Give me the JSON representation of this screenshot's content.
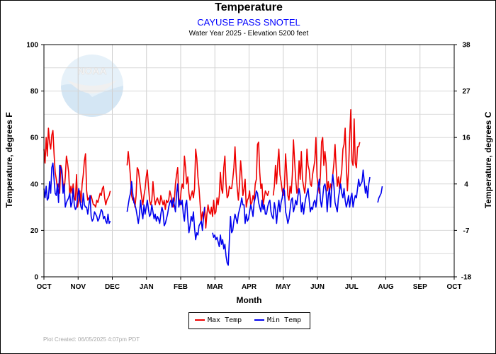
{
  "chart_data": {
    "type": "line",
    "title": "Temperature",
    "subtitle": "CAYUSE PASS SNOTEL",
    "subtitle2": "Water Year 2025 -  Elevation 5200 feet",
    "xlabel": "Month",
    "ylabel_left": "Temperature, degrees F",
    "ylabel_right": "Temperature, degrees C",
    "x_categories": [
      "OCT",
      "NOV",
      "DEC",
      "JAN",
      "FEB",
      "MAR",
      "APR",
      "MAY",
      "JUN",
      "JUL",
      "AUG",
      "SEP",
      "OCT"
    ],
    "y_left_ticks": [
      "0",
      "20",
      "40",
      "60",
      "80",
      "100"
    ],
    "y_right_ticks": [
      "-18",
      "-7",
      "4",
      "16",
      "27",
      "38"
    ],
    "ylim": [
      0,
      100
    ],
    "grid": true,
    "legend": "bottom-center",
    "footer": "Plot Created: 06/05/2025 4:07pm PDT",
    "watermark": "NOAA",
    "series": [
      {
        "name": "Max Temp",
        "color": "#ee0000",
        "start": "2024-10-01",
        "values": [
          55,
          49,
          60,
          52,
          64,
          58,
          55,
          61,
          63,
          53,
          45,
          42,
          38,
          40,
          36,
          48,
          46,
          40,
          37,
          43,
          52,
          49,
          45,
          35,
          39,
          36,
          40,
          34,
          33,
          44,
          30,
          33,
          37,
          32,
          40,
          44,
          50,
          53,
          37,
          33,
          34,
          33,
          35,
          33,
          31,
          31,
          30,
          33,
          32,
          34,
          36,
          35,
          38,
          39,
          34,
          31,
          33,
          34,
          35,
          37,
          null,
          null,
          null,
          null,
          null,
          null,
          null,
          null,
          null,
          null,
          null,
          null,
          null,
          null,
          48,
          54,
          49,
          43,
          35,
          33,
          34,
          30,
          35,
          47,
          46,
          42,
          38,
          34,
          31,
          35,
          38,
          43,
          46,
          39,
          33,
          31,
          33,
          41,
          35,
          31,
          33,
          34,
          32,
          31,
          35,
          33,
          31,
          33,
          29,
          33,
          32,
          33,
          37,
          35,
          32,
          30,
          33,
          40,
          44,
          47,
          34,
          31,
          37,
          40,
          38,
          52,
          47,
          40,
          43,
          36,
          33,
          35,
          37,
          34,
          38,
          55,
          51,
          43,
          38,
          31,
          24,
          28,
          25,
          30,
          21,
          27,
          31,
          28,
          27,
          30,
          26,
          33,
          27,
          28,
          34,
          31,
          35,
          45,
          38,
          36,
          47,
          52,
          40,
          34,
          35,
          39,
          38,
          38,
          42,
          47,
          56,
          45,
          38,
          33,
          40,
          50,
          44,
          35,
          38,
          42,
          30,
          33,
          34,
          37,
          31,
          32,
          35,
          33,
          40,
          42,
          57,
          58,
          45,
          38,
          40,
          31,
          34,
          37,
          36,
          35,
          37,
          null,
          null,
          null,
          35,
          39,
          48,
          40,
          49,
          55,
          44,
          41,
          37,
          35,
          39,
          53,
          45,
          35,
          33,
          39,
          36,
          44,
          59,
          50,
          42,
          36,
          38,
          50,
          42,
          54,
          42,
          39,
          36,
          41,
          55,
          48,
          46,
          40,
          39,
          44,
          47,
          50,
          60,
          43,
          39,
          36,
          44,
          58,
          60,
          48,
          54,
          49,
          37,
          41,
          36,
          40,
          38,
          44,
          49,
          57,
          47,
          39,
          43,
          38,
          42,
          46,
          55,
          57,
          64,
          48,
          37,
          46,
          60,
          72,
          50,
          48,
          68,
          49,
          47,
          56,
          56,
          58
        ]
      },
      {
        "name": "Min Temp",
        "color": "#0000ee",
        "start": "2024-10-01",
        "values": [
          38,
          34,
          39,
          33,
          34,
          41,
          36,
          47,
          49,
          42,
          36,
          35,
          40,
          32,
          48,
          47,
          44,
          36,
          40,
          30,
          32,
          33,
          34,
          36,
          30,
          32,
          38,
          31,
          29,
          30,
          34,
          38,
          33,
          30,
          29,
          36,
          31,
          30,
          30,
          27,
          31,
          35,
          26,
          24,
          25,
          28,
          27,
          26,
          24,
          25,
          27,
          29,
          28,
          25,
          26,
          24,
          23,
          27,
          23,
          24,
          null,
          null,
          null,
          null,
          null,
          null,
          null,
          null,
          null,
          null,
          null,
          null,
          null,
          null,
          28,
          31,
          34,
          36,
          41,
          36,
          32,
          31,
          29,
          26,
          23,
          27,
          33,
          28,
          25,
          31,
          27,
          30,
          33,
          29,
          26,
          27,
          31,
          28,
          25,
          27,
          24,
          26,
          25,
          23,
          27,
          30,
          28,
          22,
          23,
          25,
          27,
          30,
          32,
          33,
          30,
          34,
          31,
          28,
          36,
          40,
          30,
          33,
          31,
          33,
          27,
          24,
          31,
          33,
          25,
          19,
          22,
          26,
          24,
          28,
          21,
          16,
          19,
          18,
          22,
          23,
          24,
          20,
          26,
          30,
          null,
          null,
          null,
          null,
          null,
          null,
          19,
          17,
          18,
          16,
          17,
          15,
          13,
          18,
          14,
          16,
          12,
          14,
          9,
          6,
          5,
          16,
          26,
          19,
          20,
          24,
          27,
          25,
          23,
          27,
          29,
          31,
          34,
          31,
          31,
          23,
          27,
          24,
          25,
          28,
          31,
          29,
          26,
          32,
          34,
          37,
          36,
          32,
          30,
          28,
          33,
          29,
          31,
          27,
          27,
          30,
          32,
          33,
          28,
          26,
          25,
          32,
          29,
          23,
          29,
          33,
          28,
          32,
          34,
          38,
          37,
          28,
          26,
          23,
          25,
          29,
          33,
          34,
          28,
          30,
          33,
          31,
          35,
          38,
          35,
          28,
          32,
          27,
          31,
          34,
          36,
          38,
          33,
          28,
          30,
          29,
          32,
          33,
          30,
          35,
          39,
          42,
          33,
          30,
          34,
          39,
          40,
          37,
          28,
          35,
          38,
          30,
          39,
          44,
          39,
          32,
          30,
          28,
          34,
          37,
          40,
          36,
          34,
          38,
          33,
          30,
          32,
          35,
          30,
          34,
          36,
          30,
          33,
          35,
          34,
          38,
          42,
          39,
          40,
          41,
          46,
          41,
          36,
          39,
          34,
          40,
          43,
          null,
          null,
          null,
          null,
          null,
          null,
          32,
          34,
          35,
          36,
          39
        ]
      }
    ]
  }
}
